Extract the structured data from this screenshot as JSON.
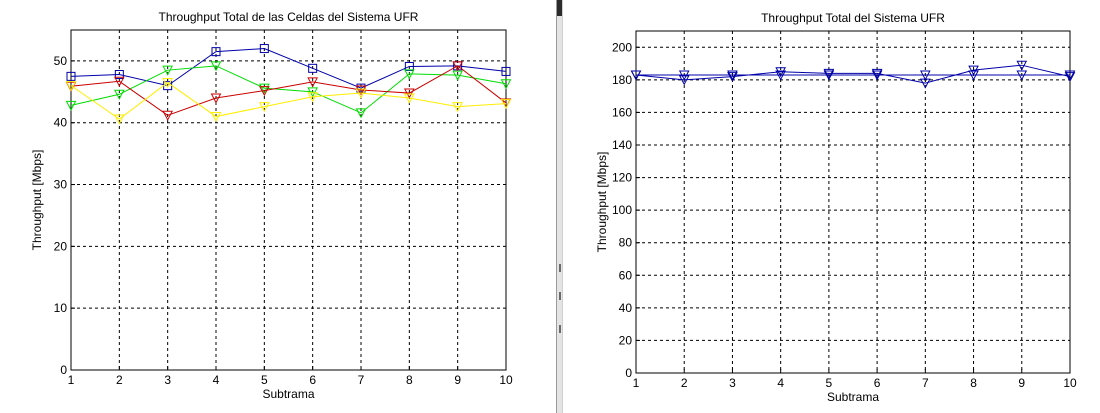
{
  "charts": [
    {
      "type": "line",
      "title": "Throughput Total de las Celdas del Sistema UFR",
      "xlabel": "Subtrama",
      "ylabel": "Throughput [Mbps]",
      "xlim": [
        1,
        10
      ],
      "ylim": [
        0,
        55
      ],
      "xticks": [
        1,
        2,
        3,
        4,
        5,
        6,
        7,
        8,
        9,
        10
      ],
      "yticks": [
        0,
        10,
        20,
        30,
        40,
        50
      ],
      "grid": true,
      "series": [
        {
          "color": "#0000aa",
          "marker": "square",
          "values": [
            47.5,
            47.8,
            46.0,
            51.5,
            52.0,
            48.8,
            45.6,
            49.1,
            49.2,
            48.3
          ]
        },
        {
          "color": "#00dd00",
          "marker": "triangle-down",
          "values": [
            42.8,
            44.6,
            48.5,
            49.2,
            45.6,
            45.0,
            41.6,
            47.9,
            47.7,
            46.3
          ]
        },
        {
          "color": "#cc0000",
          "marker": "triangle-down",
          "values": [
            45.9,
            46.7,
            41.2,
            44.0,
            45.2,
            46.6,
            45.3,
            44.8,
            49.2,
            43.2
          ]
        },
        {
          "color": "#ffee00",
          "marker": "triangle-down",
          "values": [
            46.0,
            40.6,
            46.5,
            41.0,
            42.6,
            44.2,
            44.8,
            44.0,
            42.6,
            43.1
          ]
        }
      ]
    },
    {
      "type": "line",
      "title": "Throughput Total del Sistema UFR",
      "xlabel": "Subtrama",
      "ylabel": "Throughput [Mbps]",
      "xlim": [
        1,
        10
      ],
      "ylim": [
        0,
        210
      ],
      "xticks": [
        1,
        2,
        3,
        4,
        5,
        6,
        7,
        8,
        9,
        10
      ],
      "yticks": [
        0,
        20,
        40,
        60,
        80,
        100,
        120,
        140,
        160,
        180,
        200
      ],
      "grid": true,
      "series": [
        {
          "color": "#0000aa",
          "marker": "triangle-down",
          "values": [
            183,
            180,
            182,
            185,
            184,
            184,
            178,
            186,
            189,
            182
          ]
        },
        {
          "color": "#0000aa",
          "marker": "triangle-down",
          "values": [
            183,
            183,
            183,
            183,
            183,
            183,
            183,
            183,
            183,
            183
          ]
        }
      ]
    }
  ]
}
